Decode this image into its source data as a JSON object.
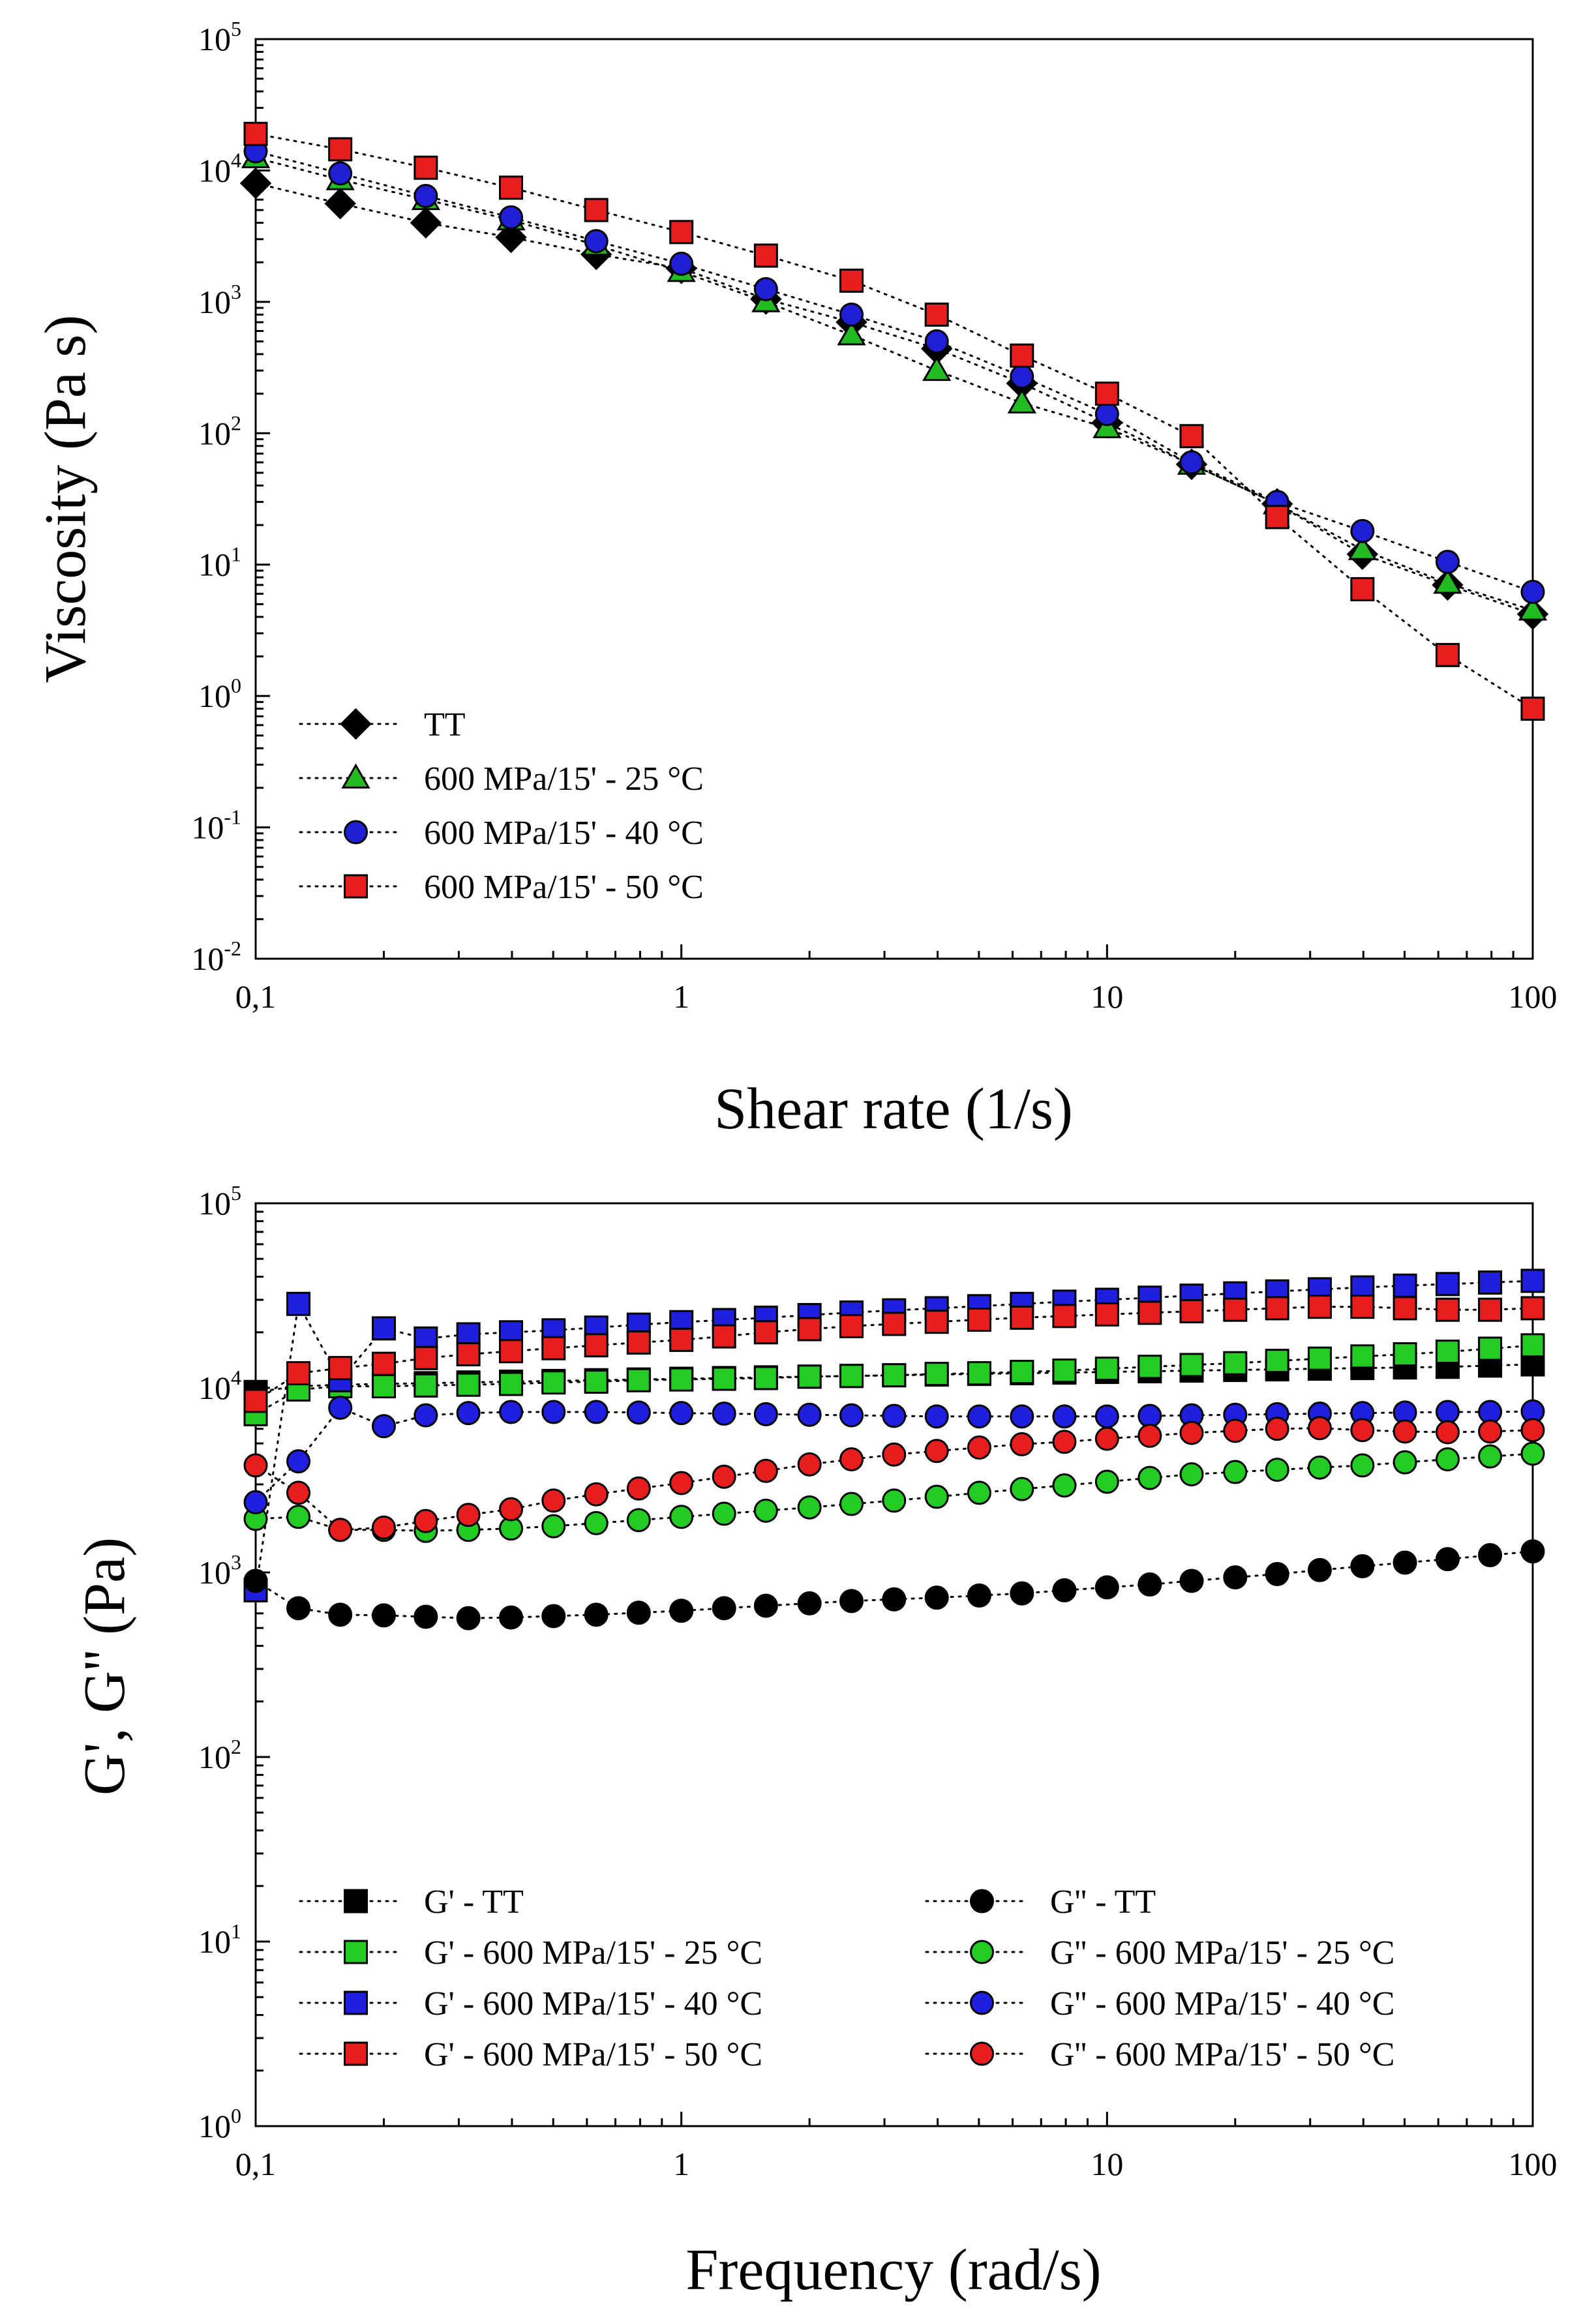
{
  "chart_data": [
    {
      "type": "scatter",
      "x_scale": "log",
      "y_scale": "log",
      "xlabel": "Shear rate (1/s)",
      "ylabel": "Viscosity (Pa s)",
      "xlim": [
        0.1,
        100
      ],
      "ylim": [
        0.01,
        100000
      ],
      "x_ticks": [
        0.1,
        1,
        10,
        100
      ],
      "x_tick_labels": [
        "0,1",
        "1",
        "10",
        "100"
      ],
      "y_ticks": [
        0.01,
        0.1,
        1,
        10,
        100,
        1000,
        10000,
        100000
      ],
      "y_tick_labels": [
        {
          "base": "10",
          "exp": "-2"
        },
        {
          "base": "10",
          "exp": "-1"
        },
        {
          "base": "10",
          "exp": "0"
        },
        {
          "base": "10",
          "exp": "1"
        },
        {
          "base": "10",
          "exp": "2"
        },
        {
          "base": "10",
          "exp": "3"
        },
        {
          "base": "10",
          "exp": "4"
        },
        {
          "base": "10",
          "exp": "5"
        }
      ],
      "grid": false,
      "legend_position": "bottom-left",
      "series": [
        {
          "name": "TT",
          "marker": "diamond",
          "color": "#000000",
          "x": [
            0.1,
            0.158,
            0.251,
            0.398,
            0.631,
            1,
            1.58,
            2.51,
            3.98,
            6.31,
            10,
            15.8,
            25.1,
            39.8,
            63.1,
            100
          ],
          "y": [
            8000,
            5600,
            4000,
            3100,
            2300,
            1800,
            1050,
            700,
            440,
            240,
            120,
            58,
            29,
            12,
            7,
            4.2
          ]
        },
        {
          "name": "600 MPa/15' - 25 °C",
          "marker": "triangle",
          "color": "#22bb22",
          "x": [
            0.1,
            0.158,
            0.251,
            0.398,
            0.631,
            1,
            1.58,
            2.51,
            3.98,
            6.31,
            10,
            15.8,
            25.1,
            39.8,
            63.1,
            100
          ],
          "y": [
            12500,
            8500,
            6000,
            4200,
            2700,
            1700,
            1000,
            560,
            300,
            170,
            110,
            58,
            29,
            13,
            7.2,
            4.5
          ]
        },
        {
          "name": "600 MPa/15' - 40 °C",
          "marker": "circle",
          "color": "#1f1fd6",
          "x": [
            0.1,
            0.158,
            0.251,
            0.398,
            0.631,
            1,
            1.58,
            2.51,
            3.98,
            6.31,
            10,
            15.8,
            25.1,
            39.8,
            63.1,
            100
          ],
          "y": [
            14000,
            9500,
            6400,
            4400,
            2900,
            1950,
            1250,
            800,
            500,
            270,
            140,
            60,
            30,
            18,
            10.5,
            6.2
          ]
        },
        {
          "name": "600 MPa/15' - 50 °C",
          "marker": "square",
          "color": "#e81e1e",
          "x": [
            0.1,
            0.158,
            0.251,
            0.398,
            0.631,
            1,
            1.58,
            2.51,
            3.98,
            6.31,
            10,
            15.8,
            25.1,
            39.8,
            63.1,
            100
          ],
          "y": [
            19000,
            14500,
            10500,
            7400,
            5000,
            3400,
            2250,
            1450,
            800,
            390,
            200,
            95,
            23,
            6.5,
            2.05,
            0.8
          ]
        }
      ]
    },
    {
      "type": "scatter",
      "x_scale": "log",
      "y_scale": "log",
      "xlabel": "Frequency (rad/s)",
      "ylabel": "G', G'' (Pa)",
      "xlim": [
        0.1,
        100
      ],
      "ylim": [
        1,
        100000
      ],
      "x_ticks": [
        0.1,
        1,
        10,
        100
      ],
      "x_tick_labels": [
        "0,1",
        "1",
        "10",
        "100"
      ],
      "y_ticks": [
        1,
        10,
        100,
        1000,
        10000,
        100000
      ],
      "y_tick_labels": [
        {
          "base": "10",
          "exp": "0"
        },
        {
          "base": "10",
          "exp": "1"
        },
        {
          "base": "10",
          "exp": "2"
        },
        {
          "base": "10",
          "exp": "3"
        },
        {
          "base": "10",
          "exp": "4"
        },
        {
          "base": "10",
          "exp": "5"
        }
      ],
      "grid": false,
      "legend_position": "bottom",
      "x": [
        0.1,
        0.126,
        0.158,
        0.2,
        0.251,
        0.316,
        0.398,
        0.501,
        0.631,
        0.794,
        1,
        1.26,
        1.58,
        2,
        2.51,
        3.16,
        3.98,
        5.01,
        6.31,
        7.94,
        10,
        12.6,
        15.8,
        20,
        25.1,
        31.6,
        39.8,
        50.1,
        63.1,
        79.4,
        100
      ],
      "series": [
        {
          "name": "G' - TT",
          "marker": "square",
          "color": "#000000",
          "y": [
            9500,
            10200,
            10400,
            10500,
            10600,
            10700,
            10800,
            10900,
            11000,
            11100,
            11200,
            11300,
            11400,
            11500,
            11600,
            11700,
            11800,
            11900,
            12000,
            12100,
            12200,
            12300,
            12400,
            12500,
            12600,
            12700,
            12800,
            12900,
            13000,
            13200,
            13400
          ]
        },
        {
          "name": "G' - 600 MPa/15' - 25 °C",
          "marker": "square",
          "color": "#22cc22",
          "y": [
            7200,
            9800,
            10200,
            10200,
            10300,
            10400,
            10500,
            10700,
            10800,
            11000,
            11100,
            11200,
            11300,
            11500,
            11600,
            11700,
            11900,
            12000,
            12200,
            12400,
            12700,
            13000,
            13300,
            13600,
            14000,
            14400,
            14800,
            15200,
            15700,
            16300,
            17000
          ]
        },
        {
          "name": "G' - 600 MPa/15' - 40 °C",
          "marker": "square",
          "color": "#1f1fe0",
          "y": [
            800,
            28500,
            11000,
            21000,
            18500,
            19500,
            20000,
            20500,
            21200,
            22000,
            22700,
            23300,
            24000,
            24800,
            25600,
            26300,
            27000,
            27700,
            28500,
            29300,
            30000,
            30800,
            31600,
            32500,
            33300,
            34200,
            35000,
            35800,
            36500,
            37200,
            38000
          ]
        },
        {
          "name": "G' - 600 MPa/15' - 50 °C",
          "marker": "square",
          "color": "#e81e1e",
          "y": [
            8500,
            12000,
            12800,
            13500,
            14500,
            15200,
            15800,
            16400,
            17000,
            17600,
            18200,
            19000,
            20000,
            20800,
            21600,
            22200,
            22800,
            23400,
            24000,
            24500,
            25000,
            25500,
            26000,
            26500,
            27000,
            27500,
            27500,
            27000,
            26500,
            26500,
            27000
          ]
        },
        {
          "name": "G'' - TT",
          "marker": "circle",
          "color": "#000000",
          "y": [
            900,
            640,
            590,
            585,
            575,
            565,
            570,
            580,
            590,
            605,
            620,
            640,
            660,
            680,
            700,
            715,
            730,
            750,
            770,
            800,
            830,
            860,
            900,
            940,
            980,
            1030,
            1080,
            1130,
            1180,
            1240,
            1300
          ]
        },
        {
          "name": "G'' - 600 MPa/15' - 25 °C",
          "marker": "circle",
          "color": "#22cc22",
          "y": [
            1950,
            2000,
            1700,
            1700,
            1680,
            1700,
            1730,
            1780,
            1850,
            1920,
            2000,
            2080,
            2160,
            2250,
            2350,
            2450,
            2570,
            2700,
            2830,
            2960,
            3100,
            3250,
            3400,
            3500,
            3600,
            3700,
            3800,
            3950,
            4100,
            4250,
            4400
          ]
        },
        {
          "name": "G'' - 600 MPa/15' - 40 °C",
          "marker": "circle",
          "color": "#1f1fe0",
          "y": [
            2400,
            4000,
            7800,
            6200,
            7100,
            7300,
            7400,
            7400,
            7400,
            7350,
            7300,
            7250,
            7200,
            7150,
            7100,
            7050,
            7000,
            7000,
            7000,
            7000,
            7000,
            7050,
            7100,
            7150,
            7200,
            7250,
            7300,
            7350,
            7400,
            7400,
            7450
          ]
        },
        {
          "name": "G'' - 600 MPa/15' - 50 °C",
          "marker": "circle",
          "color": "#e81e1e",
          "y": [
            3800,
            2700,
            1700,
            1750,
            1900,
            2050,
            2200,
            2450,
            2650,
            2850,
            3050,
            3300,
            3550,
            3850,
            4100,
            4350,
            4550,
            4750,
            4950,
            5100,
            5300,
            5500,
            5700,
            5850,
            6000,
            6050,
            5900,
            5800,
            5750,
            5800,
            5900
          ]
        }
      ]
    }
  ]
}
